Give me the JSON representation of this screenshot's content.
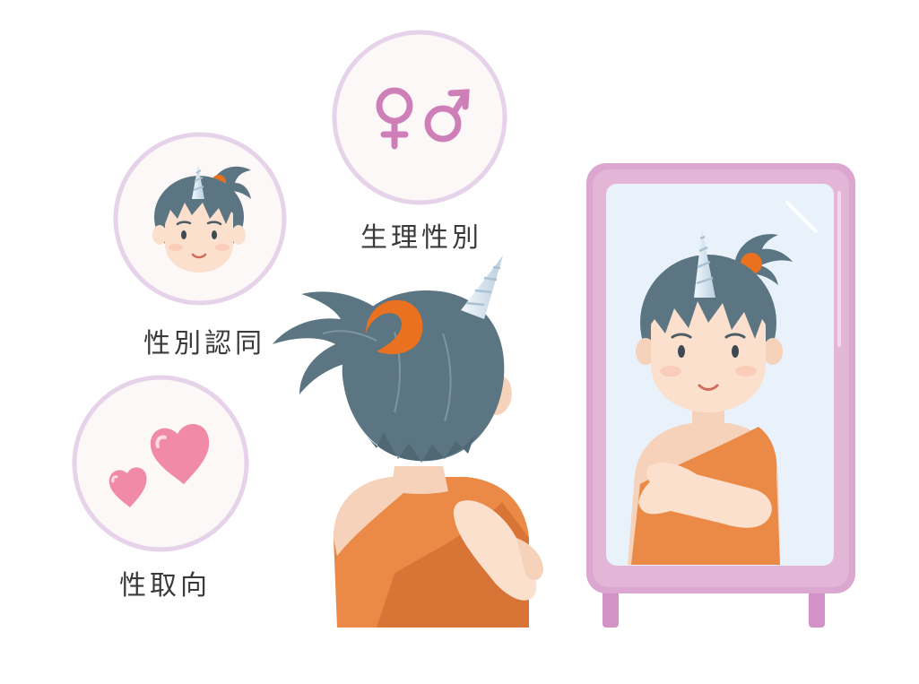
{
  "labels": {
    "biological_sex": "生理性別",
    "gender_identity": "性別認同",
    "sexual_orientation": "性取向"
  },
  "icons": {
    "sex_symbols": "female-male-symbols-icon",
    "face": "face-icon",
    "hearts": "hearts-icon",
    "character": "unicorn-child-character",
    "mirror": "mirror-icon"
  },
  "colors": {
    "circle_ring": "#e6d3ea",
    "circle_fill": "#fdf8f8",
    "symbol": "#cf7fb8",
    "heart": "#f08aa6",
    "mirror_frame": "#dba6cf",
    "mirror_glass": "#e9f2fb",
    "hair": "#5c7583",
    "robe": "#ea8a46",
    "skin": "#fbe1cd",
    "hair_tie": "#e9711f",
    "horn": "#d9e6f1"
  }
}
